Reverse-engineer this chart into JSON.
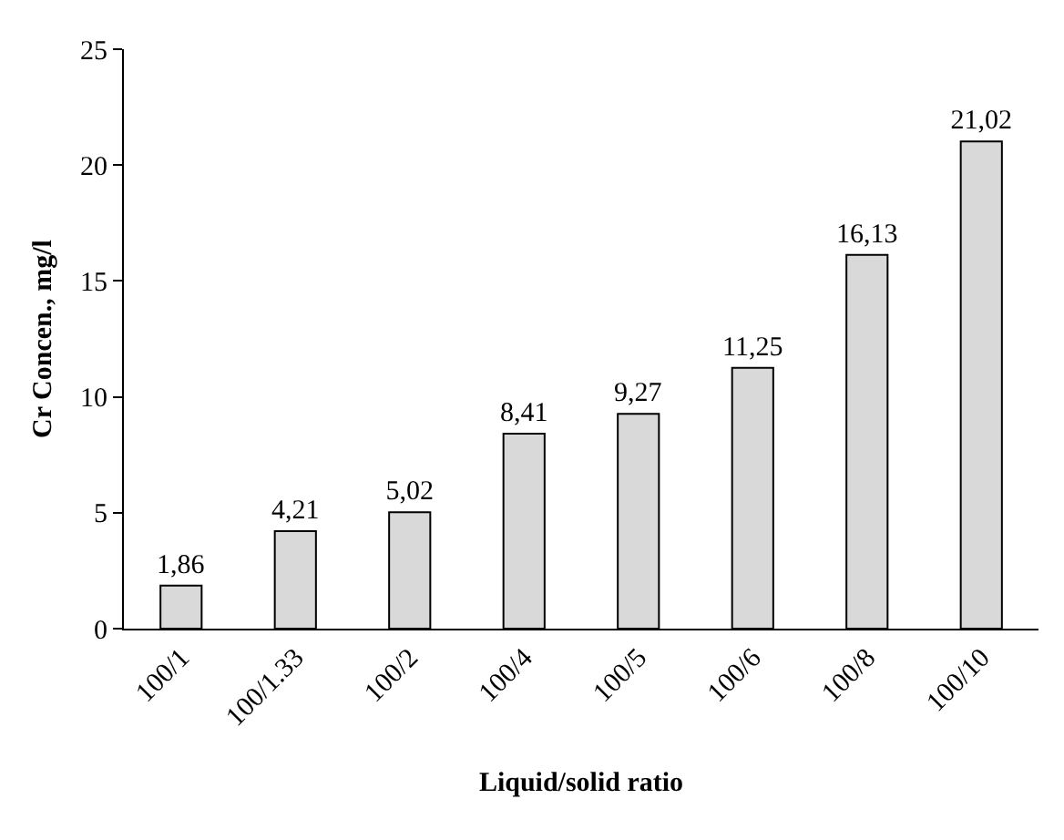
{
  "chart_data": {
    "type": "bar",
    "xlabel": "Liquid/solid ratio",
    "ylabel": "Cr Concen., mg/l",
    "categories": [
      "100/1",
      "100/1.33",
      "100/2",
      "100/4",
      "100/5",
      "100/6",
      "100/8",
      "100/10"
    ],
    "values": [
      1.86,
      4.21,
      5.02,
      8.41,
      9.27,
      11.25,
      16.13,
      21.02
    ],
    "value_labels": [
      "1,86",
      "4,21",
      "5,02",
      "8,41",
      "9,27",
      "11,25",
      "16,13",
      "21,02"
    ],
    "color": "#d9d9d9",
    "ylim": [
      0,
      25
    ],
    "yticks": [
      0,
      5,
      10,
      15,
      20,
      25
    ],
    "grid": false,
    "legend": false
  }
}
